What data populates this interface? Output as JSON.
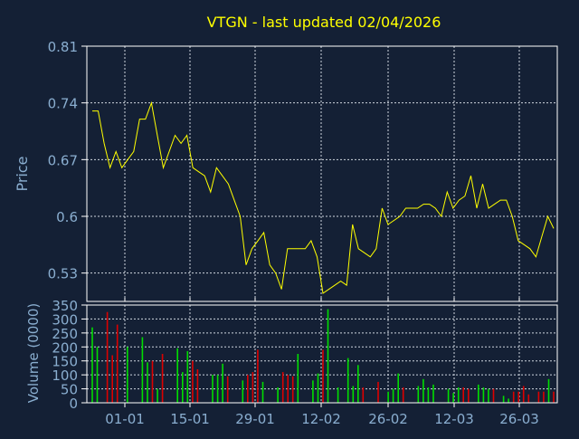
{
  "chart_data": [
    {
      "type": "line",
      "title": "VTGN - last updated 02/04/2026",
      "ylabel": "Price",
      "xlabel": "",
      "ylim": [
        0.495,
        0.81
      ],
      "yticks": [
        0.81,
        0.74,
        0.67,
        0.6,
        0.53
      ],
      "ytick_labels": [
        "0.81",
        "0.74",
        "0.67",
        "0.6",
        "0.53"
      ],
      "xticks": [
        "01-01",
        "15-01",
        "29-01",
        "12-02",
        "26-02",
        "12-03",
        "26-03"
      ],
      "grid": true,
      "legend": "none",
      "colors": {
        "line": "#ffff00",
        "background": "#142035",
        "plot_border": "#ffffff",
        "grid": "#cfd6e0",
        "text": "#8aaed0",
        "title": "#ffff00"
      },
      "series": [
        {
          "values": [
            0.73,
            0.73,
            0.69,
            0.66,
            0.68,
            0.66,
            0.67,
            0.68,
            0.72,
            0.72,
            0.74,
            0.7,
            0.66,
            0.68,
            0.7,
            0.69,
            0.7,
            0.66,
            0.655,
            0.65,
            0.63,
            0.66,
            0.65,
            0.64,
            0.62,
            0.6,
            0.54,
            0.56,
            0.57,
            0.58,
            0.54,
            0.53,
            0.51,
            0.56,
            0.56,
            0.56,
            0.56,
            0.57,
            0.55,
            0.505,
            0.51,
            0.515,
            0.52,
            0.515,
            0.59,
            0.56,
            0.555,
            0.55,
            0.56,
            0.61,
            0.59,
            0.595,
            0.6,
            0.61,
            0.61,
            0.61,
            0.615,
            0.615,
            0.61,
            0.6,
            0.63,
            0.61,
            0.62,
            0.625,
            0.65,
            0.61,
            0.64,
            0.61,
            0.615,
            0.62,
            0.62,
            0.6,
            0.57,
            0.565,
            0.56,
            0.55,
            0.575,
            0.6,
            0.585
          ]
        }
      ]
    },
    {
      "type": "bar",
      "ylabel": "Volume (0000)",
      "xlabel": "",
      "ylim": [
        0,
        350
      ],
      "yticks": [
        0,
        50,
        100,
        150,
        200,
        250,
        300,
        350
      ],
      "ytick_labels": [
        "0",
        "50",
        "100",
        "150",
        "200",
        "250",
        "300",
        "350"
      ],
      "xticks": [
        "01-01",
        "15-01",
        "29-01",
        "12-02",
        "26-02",
        "12-03",
        "26-03"
      ],
      "grid": true,
      "legend": "none",
      "colors": {
        "up": "#00dd00",
        "down": "#dd0000"
      },
      "values": [
        270,
        200,
        0,
        325,
        170,
        280,
        0,
        200,
        0,
        0,
        235,
        145,
        150,
        50,
        175,
        0,
        0,
        195,
        110,
        185,
        150,
        120,
        0,
        0,
        100,
        100,
        140,
        95,
        0,
        0,
        80,
        100,
        110,
        190,
        75,
        0,
        0,
        55,
        110,
        100,
        95,
        175,
        0,
        0,
        80,
        105,
        190,
        335,
        0,
        55,
        0,
        160,
        60,
        135,
        55,
        0,
        0,
        75,
        0,
        40,
        50,
        105,
        55,
        0,
        0,
        60,
        85,
        55,
        65,
        0,
        0,
        50,
        35,
        55,
        55,
        50,
        0,
        65,
        55,
        50,
        50,
        0,
        25,
        15,
        40,
        40,
        60,
        30,
        0,
        40,
        40,
        85,
        40
      ],
      "directions": [
        "up",
        "up",
        "up",
        "down",
        "down",
        "down",
        "up",
        "up",
        "up",
        "up",
        "up",
        "up",
        "down",
        "up",
        "down",
        "up",
        "up",
        "up",
        "up",
        "up",
        "down",
        "down",
        "up",
        "up",
        "up",
        "up",
        "up",
        "down",
        "up",
        "up",
        "up",
        "down",
        "down",
        "down",
        "up",
        "up",
        "up",
        "up",
        "down",
        "down",
        "down",
        "up",
        "up",
        "up",
        "up",
        "up",
        "down",
        "up",
        "up",
        "up",
        "up",
        "up",
        "up",
        "up",
        "down",
        "up",
        "up",
        "down",
        "up",
        "up",
        "up",
        "up",
        "down",
        "up",
        "up",
        "up",
        "up",
        "up",
        "up",
        "up",
        "up",
        "up",
        "up",
        "up",
        "down",
        "down",
        "up",
        "up",
        "up",
        "up",
        "down",
        "up",
        "up",
        "up",
        "down",
        "down",
        "down",
        "down",
        "up",
        "down",
        "down",
        "up",
        "down"
      ]
    }
  ]
}
